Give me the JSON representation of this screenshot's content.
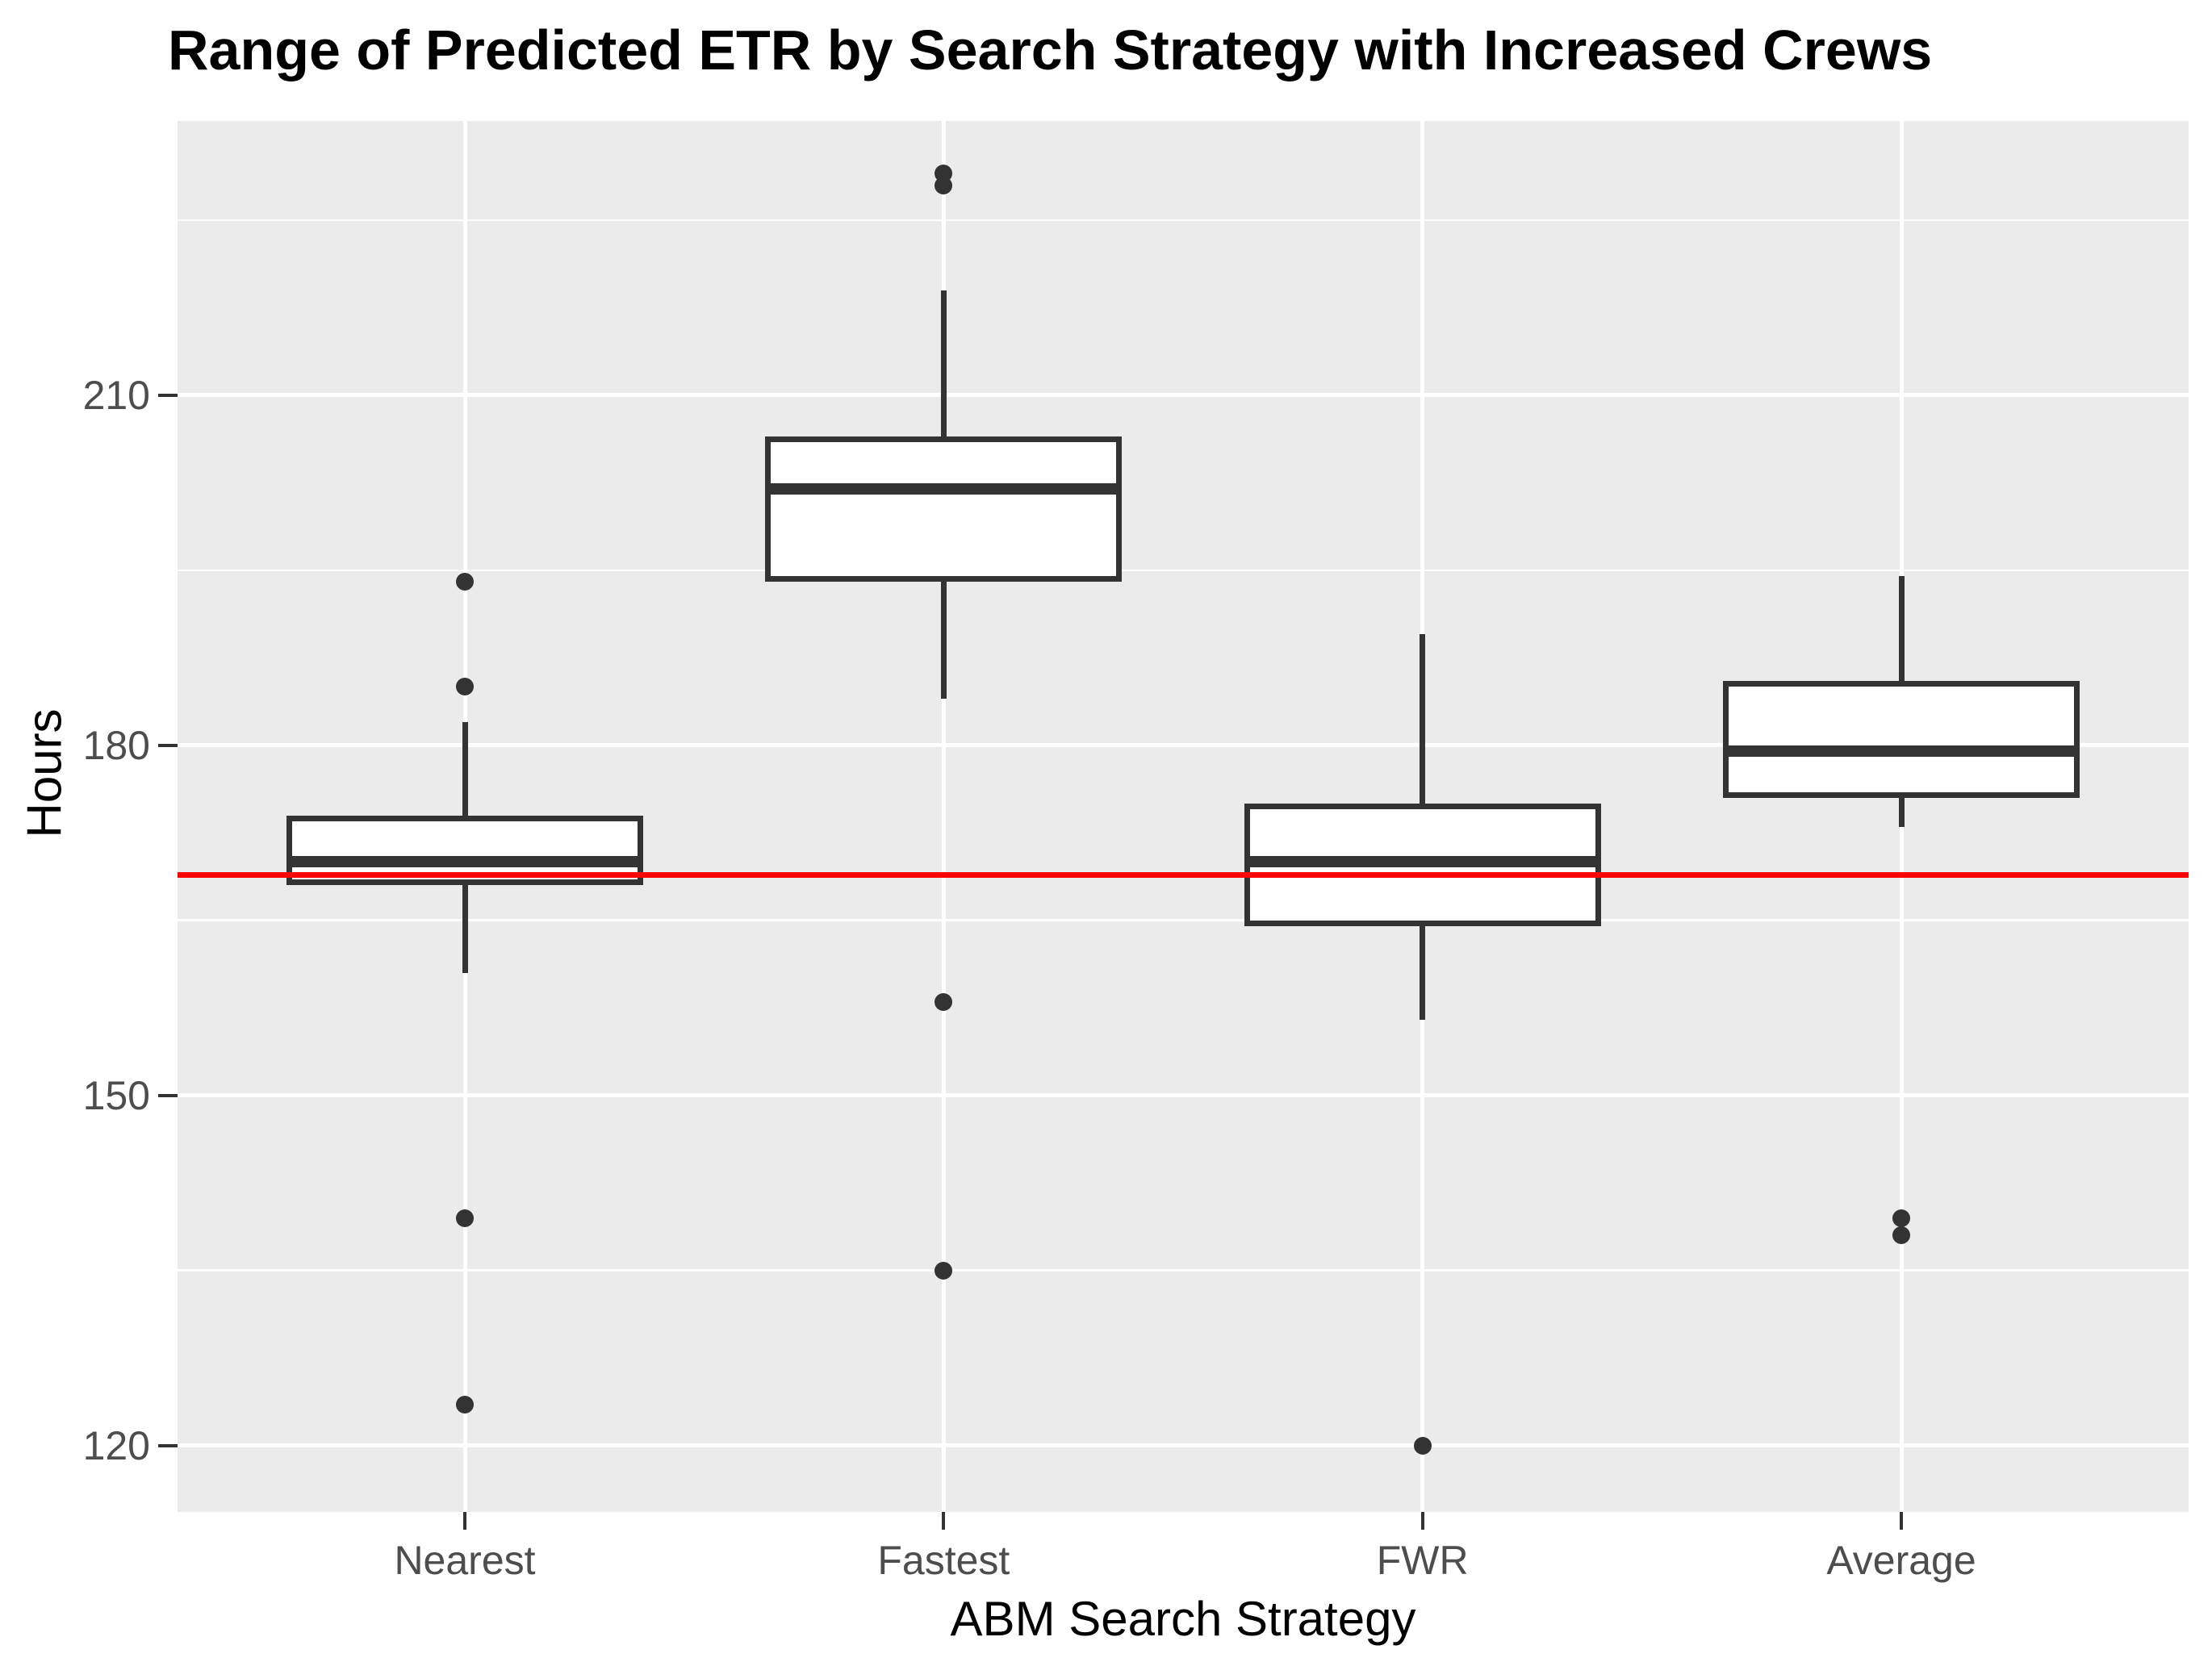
{
  "title": "Range of Predicted ETR by Search Strategy with Increased Crews",
  "axes": {
    "x_title": "ABM Search Strategy",
    "y_title": "Hours"
  },
  "colors": {
    "panel_background": "#EBEBEB",
    "gridline": "#FFFFFF",
    "box_stroke": "#333333",
    "box_fill": "#FFFFFF",
    "outlier": "#333333",
    "reference_line": "#FF0000",
    "tick_label": "#4D4D4D",
    "title_text": "#000000"
  },
  "chart_data": {
    "type": "boxplot",
    "title": "Range of Predicted ETR by Search Strategy with Increased Crews",
    "xlabel": "ABM Search Strategy",
    "ylabel": "Hours",
    "categories": [
      "Nearest",
      "Fastest",
      "FWR",
      "Average"
    ],
    "y_ticks": [
      120,
      150,
      180,
      210
    ],
    "ylim": [
      114.3,
      233.5
    ],
    "grid": "on",
    "legend": "none",
    "reference_line": {
      "value": 168.9,
      "color": "#FF0000",
      "orientation": "horizontal"
    },
    "series": [
      {
        "category": "Nearest",
        "whisker_low": 160.5,
        "q1": 168,
        "median": 170,
        "q3": 174,
        "whisker_high": 182,
        "outliers": [
          123.5,
          139.5,
          185,
          194
        ]
      },
      {
        "category": "Fastest",
        "whisker_low": 184,
        "q1": 194,
        "median": 202,
        "q3": 206.5,
        "whisker_high": 219,
        "outliers": [
          135,
          158,
          228,
          229
        ]
      },
      {
        "category": "FWR",
        "whisker_low": 156.5,
        "q1": 164.5,
        "median": 170,
        "q3": 175,
        "whisker_high": 189.5,
        "outliers": [
          120
        ]
      },
      {
        "category": "Average",
        "whisker_low": 173,
        "q1": 175.5,
        "median": 179.5,
        "q3": 185.5,
        "whisker_high": 194.5,
        "outliers": [
          138,
          139.5
        ]
      }
    ]
  }
}
